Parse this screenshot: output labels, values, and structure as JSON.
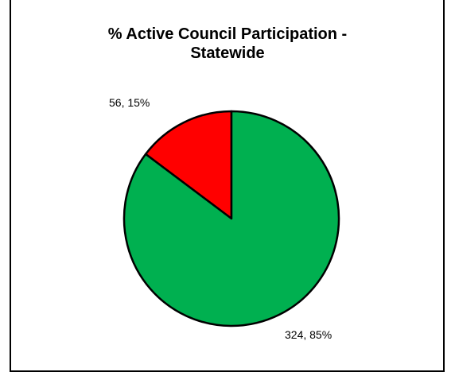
{
  "chart_data": {
    "type": "pie",
    "title_lines": [
      "% Active Council Participation -",
      "Statewide"
    ],
    "slices": [
      {
        "value": 56,
        "percent": 15,
        "label": "56, 15%",
        "color": "#ff0000"
      },
      {
        "value": 324,
        "percent": 85,
        "label": "324, 85%",
        "color": "#00b050"
      }
    ],
    "legend": false,
    "start": "12 o'clock",
    "direction": "counter-clockwise for first slice"
  }
}
